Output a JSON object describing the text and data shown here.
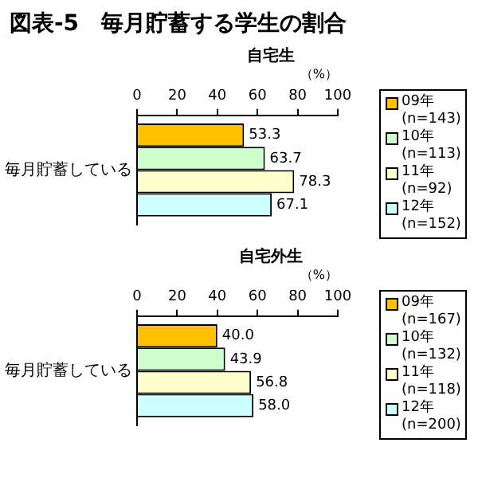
{
  "chart_data": [
    {
      "type": "bar",
      "title": "図表-5　毎月貯蓄する学生の割合",
      "subtitle": "自宅生",
      "xlabel": "（%）",
      "orientation": "horizontal",
      "categories": [
        "毎月貯蓄している"
      ],
      "xlim": [
        0,
        100
      ],
      "xticks": [
        0,
        20,
        40,
        60,
        80,
        100
      ],
      "grid": false,
      "legend": "right",
      "series": [
        {
          "name": "09年\n(n=143)",
          "color": "#ffc000",
          "values": [
            53.3
          ],
          "value_labels": [
            "53.3"
          ]
        },
        {
          "name": "10年\n(n=113)",
          "color": "#ccffcc",
          "values": [
            63.7
          ],
          "value_labels": [
            "63.7"
          ]
        },
        {
          "name": "11年\n(n=92)",
          "color": "#ffffcc",
          "values": [
            78.3
          ],
          "value_labels": [
            "78.3"
          ]
        },
        {
          "name": "12年\n(n=152)",
          "color": "#ccffff",
          "values": [
            67.1
          ],
          "value_labels": [
            "67.1"
          ]
        }
      ]
    },
    {
      "type": "bar",
      "subtitle": "自宅外生",
      "xlabel": "（%）",
      "orientation": "horizontal",
      "categories": [
        "毎月貯蓄している"
      ],
      "xlim": [
        0,
        100
      ],
      "xticks": [
        0,
        20,
        40,
        60,
        80,
        100
      ],
      "grid": false,
      "legend": "right",
      "series": [
        {
          "name": "09年\n(n=167)",
          "color": "#ffc000",
          "values": [
            40.0
          ],
          "value_labels": [
            "40.0"
          ]
        },
        {
          "name": "10年\n(n=132)",
          "color": "#ccffcc",
          "values": [
            43.9
          ],
          "value_labels": [
            "43.9"
          ]
        },
        {
          "name": "11年\n(n=118)",
          "color": "#ffffcc",
          "values": [
            56.8
          ],
          "value_labels": [
            "56.8"
          ]
        },
        {
          "name": "12年\n(n=200)",
          "color": "#ccffff",
          "values": [
            58.0
          ],
          "value_labels": [
            "58.0"
          ]
        }
      ]
    }
  ]
}
